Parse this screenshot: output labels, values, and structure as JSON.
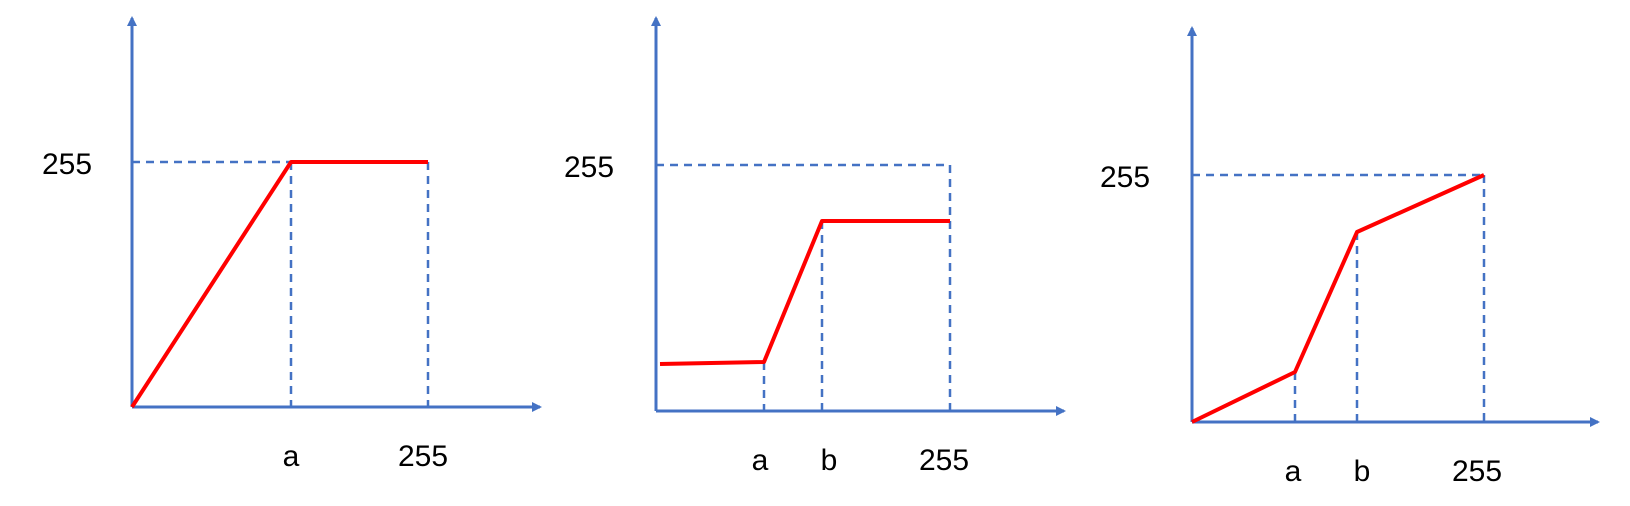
{
  "colors": {
    "axis": "#4472C4",
    "curve": "#FF0000",
    "guide": "#4472C4",
    "text": "#000000"
  },
  "panels": [
    {
      "y_label": "255",
      "x_labels": [
        "a",
        "255"
      ],
      "points": [
        [
          0,
          0
        ],
        [
          0.6,
          1
        ],
        [
          1,
          1
        ]
      ]
    },
    {
      "y_label": "255",
      "x_labels": [
        "a",
        "b",
        "255"
      ],
      "points": [
        [
          0,
          0.18
        ],
        [
          0.33,
          0.19
        ],
        [
          0.5,
          0.77
        ],
        [
          1,
          0.77
        ]
      ]
    },
    {
      "y_label": "255",
      "x_labels": [
        "a",
        "b",
        "255"
      ],
      "points": [
        [
          0,
          0
        ],
        [
          0.35,
          0.2
        ],
        [
          0.55,
          0.77
        ],
        [
          1,
          1
        ]
      ]
    }
  ]
}
